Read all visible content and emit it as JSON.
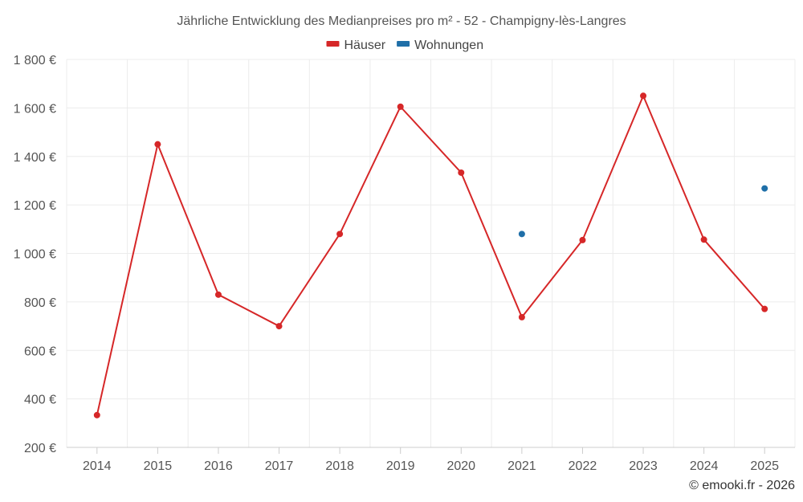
{
  "chart_data": {
    "type": "line",
    "title": "Jährliche Entwicklung des Medianpreises pro m² - 52 - Champigny-lès-Langres",
    "categories": [
      "2014",
      "2015",
      "2016",
      "2017",
      "2018",
      "2019",
      "2020",
      "2021",
      "2022",
      "2023",
      "2024",
      "2025"
    ],
    "series": [
      {
        "name": "Häuser",
        "color": "#d62728",
        "values": [
          333,
          1450,
          830,
          700,
          1080,
          1605,
          1333,
          737,
          1055,
          1650,
          1057,
          771
        ]
      },
      {
        "name": "Wohnungen",
        "color": "#1f6fa8",
        "values": [
          null,
          null,
          null,
          null,
          null,
          null,
          null,
          1080,
          null,
          null,
          null,
          1268
        ]
      }
    ],
    "ylim": [
      200,
      1800
    ],
    "yticks": [
      200,
      400,
      600,
      800,
      1000,
      1200,
      1400,
      1600,
      1800
    ],
    "ytick_labels": [
      "200 €",
      "400 €",
      "600 €",
      "800 €",
      "1 000 €",
      "1 200 €",
      "1 400 €",
      "1 600 €",
      "1 800 €"
    ],
    "grid": true,
    "legend": "top-center",
    "xlabel": "",
    "ylabel": ""
  },
  "credit": "© emooki.fr - 2026"
}
